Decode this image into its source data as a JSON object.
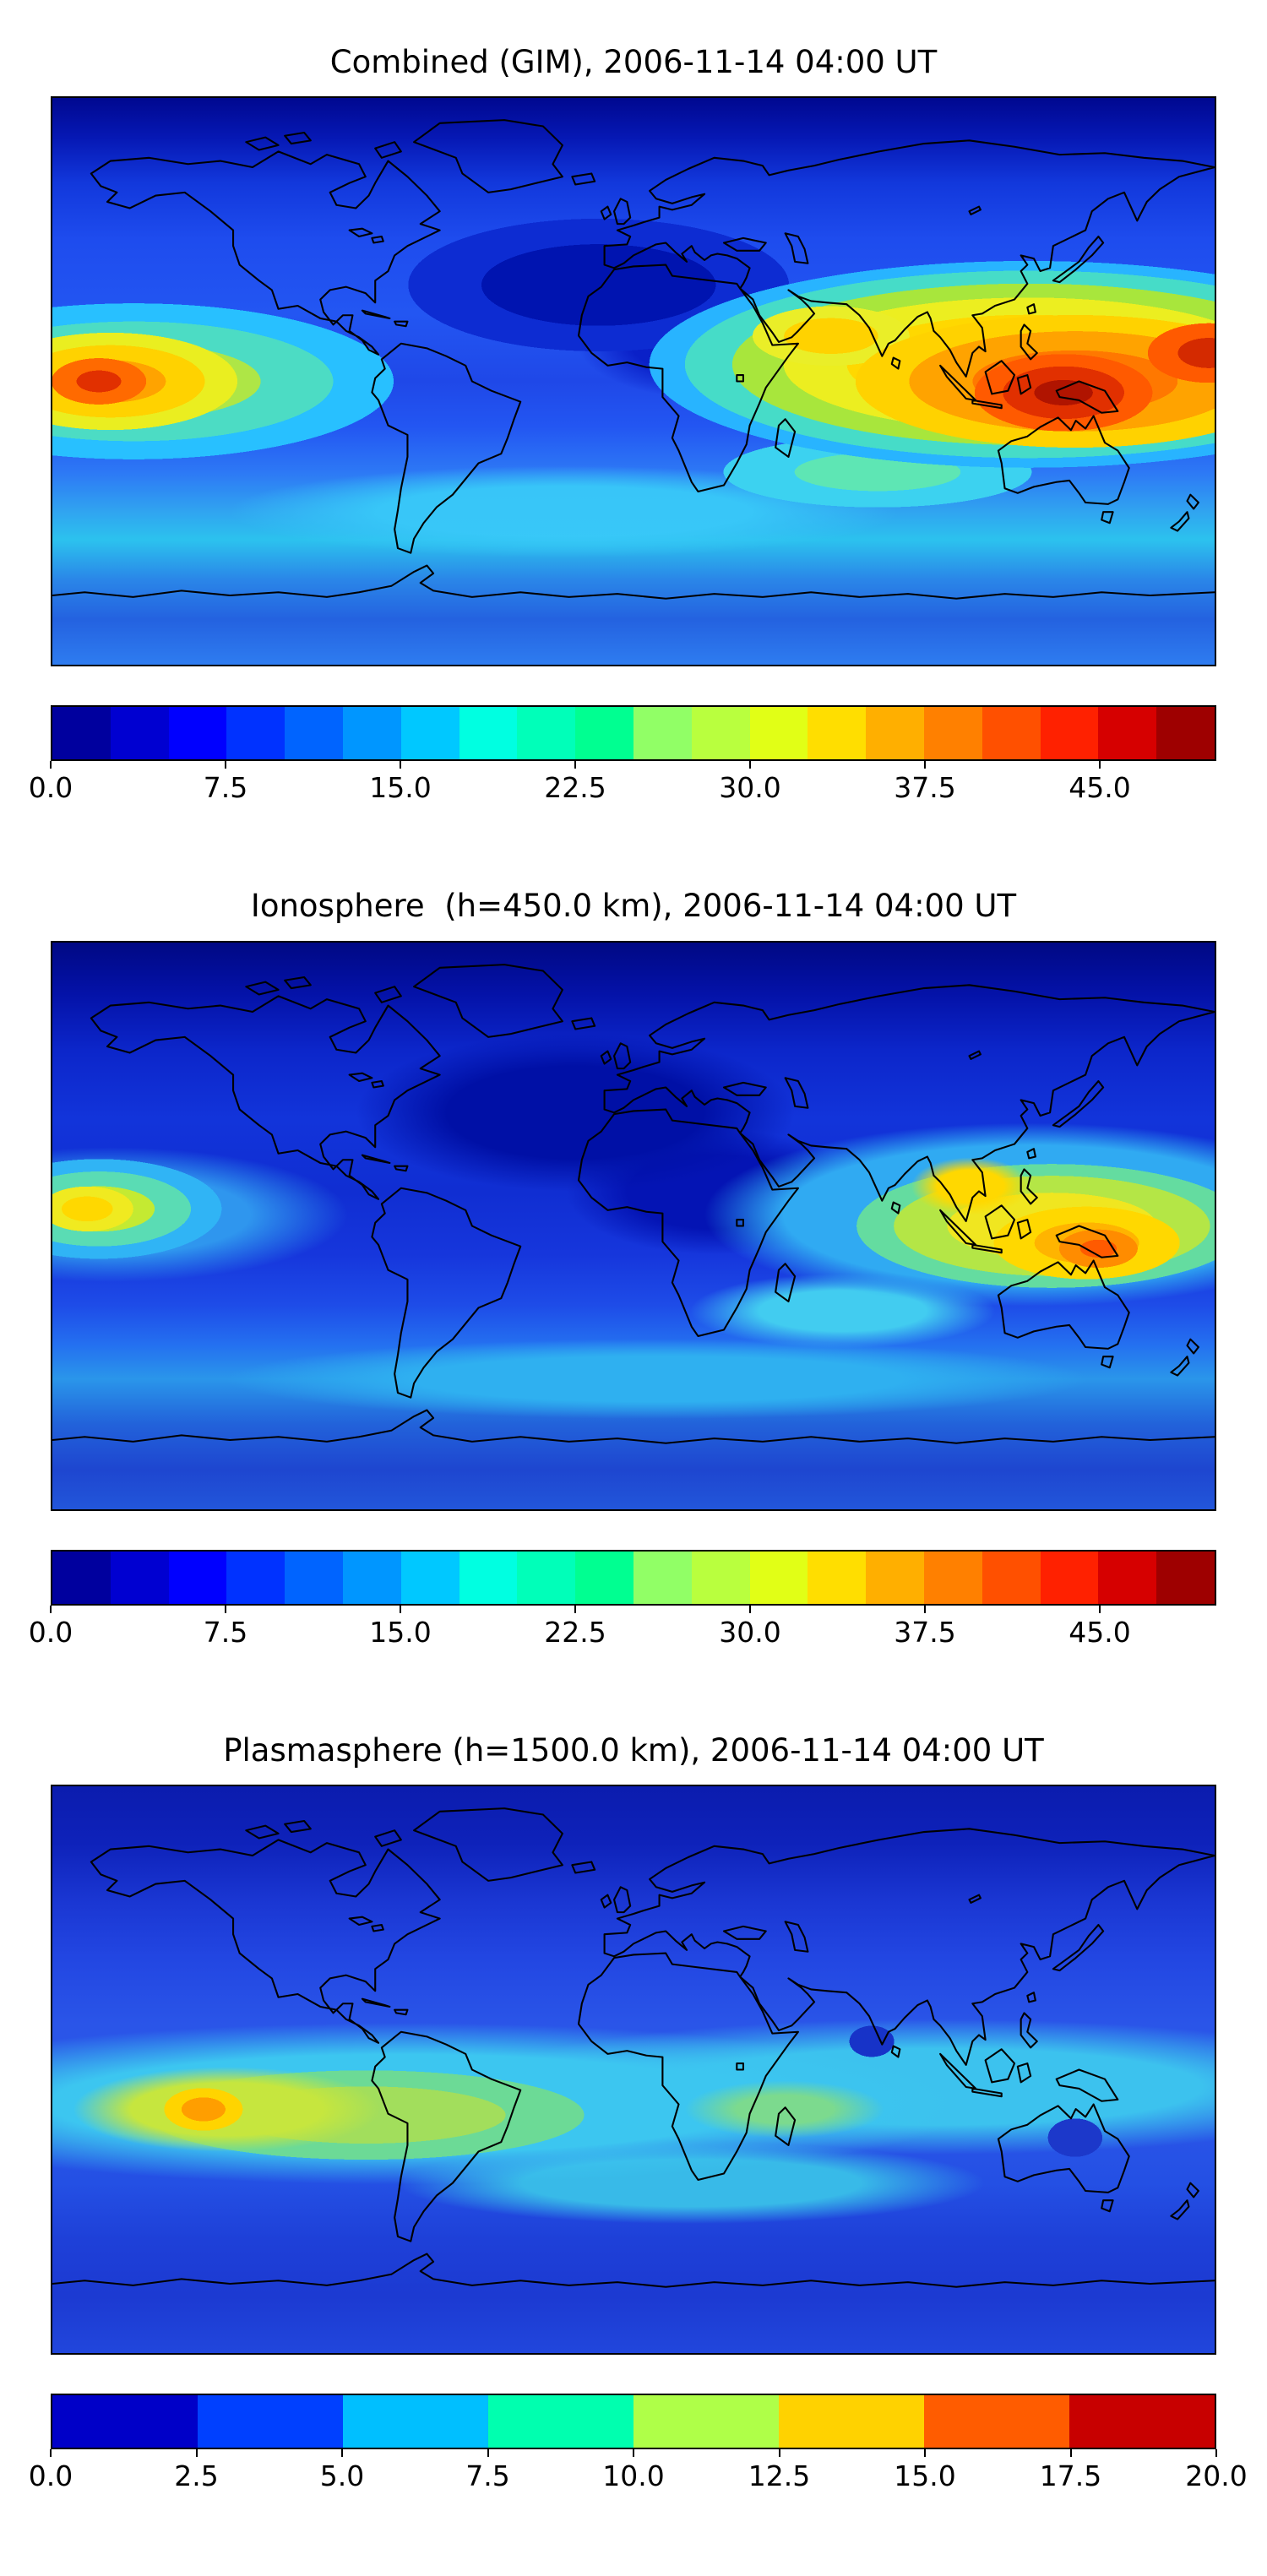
{
  "panels": [
    {
      "title": "Combined (GIM), 2006-11-14 04:00 UT",
      "colorbar": {
        "min": 0,
        "max": 50,
        "tick_values": [
          0,
          7.5,
          15,
          22.5,
          30,
          37.5,
          45
        ],
        "tick_labels": [
          "0.0",
          "7.5",
          "15.0",
          "22.5",
          "30.0",
          "37.5",
          "45.0"
        ],
        "segments": [
          "#00009e",
          "#0000d1",
          "#0000ff",
          "#0032ff",
          "#0064ff",
          "#0096ff",
          "#00c8ff",
          "#00ffe1",
          "#00ffb9",
          "#00ff91",
          "#91ff66",
          "#b9ff3e",
          "#e1ff16",
          "#ffde00",
          "#ffaf00",
          "#ff8000",
          "#ff5000",
          "#ff2100",
          "#d60000",
          "#9e0000"
        ]
      }
    },
    {
      "title": "Ionosphere  (h=450.0 km), 2006-11-14 04:00 UT",
      "colorbar": {
        "min": 0,
        "max": 50,
        "tick_values": [
          0,
          7.5,
          15,
          22.5,
          30,
          37.5,
          45
        ],
        "tick_labels": [
          "0.0",
          "7.5",
          "15.0",
          "22.5",
          "30.0",
          "37.5",
          "45.0"
        ],
        "segments": [
          "#00009e",
          "#0000d1",
          "#0000ff",
          "#0032ff",
          "#0064ff",
          "#0096ff",
          "#00c8ff",
          "#00ffe1",
          "#00ffb9",
          "#00ff91",
          "#91ff66",
          "#b9ff3e",
          "#e1ff16",
          "#ffde00",
          "#ffaf00",
          "#ff8000",
          "#ff5000",
          "#ff2100",
          "#d60000",
          "#9e0000"
        ]
      }
    },
    {
      "title": "Plasmasphere (h=1500.0 km), 2006-11-14 04:00 UT",
      "colorbar": {
        "min": 0,
        "max": 20,
        "tick_values": [
          0,
          2.5,
          5,
          7.5,
          10,
          12.5,
          15,
          17.5,
          20
        ],
        "tick_labels": [
          "0.0",
          "2.5",
          "5.0",
          "7.5",
          "10.0",
          "12.5",
          "15.0",
          "17.5",
          "20.0"
        ],
        "segments": [
          "#0000c8",
          "#0040ff",
          "#00bfff",
          "#00ffaf",
          "#afff48",
          "#ffd200",
          "#ff5c00",
          "#c80000"
        ]
      }
    }
  ],
  "chart_data": [
    {
      "type": "heatmap",
      "title": "Combined (GIM), 2006-11-14 04:00 UT",
      "projection": "equirectangular world map, lon -180..180, lat -90..90, coastlines overlaid",
      "colormap": "jet (discrete contourf levels, step 2.5)",
      "colorbar_range": [
        0,
        50
      ],
      "colorbar_ticks": [
        0.0,
        7.5,
        15.0,
        22.5,
        30.0,
        37.5,
        45.0
      ],
      "features": [
        {
          "name": "east-asia-australia-anomaly-maximum",
          "lon": 140,
          "lat": -8,
          "peak_value": 48,
          "extent_lon": [
            80,
            180
          ],
          "extent_lat": [
            -30,
            25
          ]
        },
        {
          "name": "west-pacific-edge-maximum",
          "lon": -160,
          "lat": -2,
          "peak_value": 46,
          "extent_lon": [
            -180,
            -125
          ],
          "extent_lat": [
            -20,
            20
          ]
        },
        {
          "name": "india-secondary-high",
          "lon": 60,
          "lat": 15,
          "peak_value": 30
        },
        {
          "name": "north-atlantic-africa-minimum",
          "lon": -10,
          "lat": 30,
          "min_value": 3
        },
        {
          "name": "southern-midlatitude-cyan-band",
          "lat": -45,
          "value": 22
        },
        {
          "name": "north-polar-background",
          "lat": 75,
          "value": 5
        }
      ]
    },
    {
      "type": "heatmap",
      "title": "Ionosphere  (h=450.0 km), 2006-11-14 04:00 UT",
      "projection": "equirectangular world map, lon -180..180, lat -90..90, coastlines overlaid",
      "colormap": "jet (discrete contourf levels, step 2.5)",
      "colorbar_range": [
        0,
        50
      ],
      "colorbar_ticks": [
        0.0,
        7.5,
        15.0,
        22.5,
        30.0,
        37.5,
        45.0
      ],
      "features": [
        {
          "name": "indonesia-north-australia-maximum",
          "lon": 132,
          "lat": -12,
          "peak_value": 40,
          "extent_lon": [
            90,
            180
          ],
          "extent_lat": [
            -30,
            15
          ]
        },
        {
          "name": "west-pacific-edge-maximum",
          "lon": -170,
          "lat": 5,
          "peak_value": 33,
          "extent_lon": [
            -180,
            -140
          ],
          "extent_lat": [
            -10,
            20
          ]
        },
        {
          "name": "north-atlantic-africa-minimum",
          "lon": -15,
          "lat": 35,
          "min_value": 2
        },
        {
          "name": "southern-midlatitude-cyan-band",
          "lat": -48,
          "value": 17
        },
        {
          "name": "north-polar-background",
          "lat": 75,
          "value": 4
        }
      ]
    },
    {
      "type": "heatmap",
      "title": "Plasmasphere (h=1500.0 km), 2006-11-14 04:00 UT",
      "projection": "equirectangular world map, lon -180..180, lat -90..90, coastlines overlaid",
      "colormap": "jet (discrete contourf levels, step 2.5)",
      "colorbar_range": [
        0,
        20
      ],
      "colorbar_ticks": [
        0.0,
        2.5,
        5.0,
        7.5,
        10.0,
        12.5,
        15.0,
        17.5,
        20.0
      ],
      "features": [
        {
          "name": "east-pacific-south-america-maximum",
          "lon": -133,
          "lat": -13,
          "peak_value": 16,
          "extent_lon": [
            -175,
            -30
          ],
          "extent_lat": [
            0,
            -28
          ]
        },
        {
          "name": "green-belt-south-america",
          "lon": -85,
          "lat": -15,
          "value": 11
        },
        {
          "name": "indian-ocean-green-patch",
          "lon": 47,
          "lat": -13,
          "value": 9
        },
        {
          "name": "equatorial-cyan-band",
          "lat": -10,
          "value": 7.5,
          "extent_lon": [
            -180,
            180
          ]
        },
        {
          "name": "india-local-minimum-dot",
          "lon": 74,
          "lat": 9,
          "value": 4
        },
        {
          "name": "south-australia-local-minimum-dot",
          "lon": 137,
          "lat": -22,
          "value": 4
        },
        {
          "name": "north-polar-background",
          "lat": 70,
          "value": 2
        },
        {
          "name": "south-background",
          "lat": -60,
          "value": 4
        }
      ]
    }
  ]
}
